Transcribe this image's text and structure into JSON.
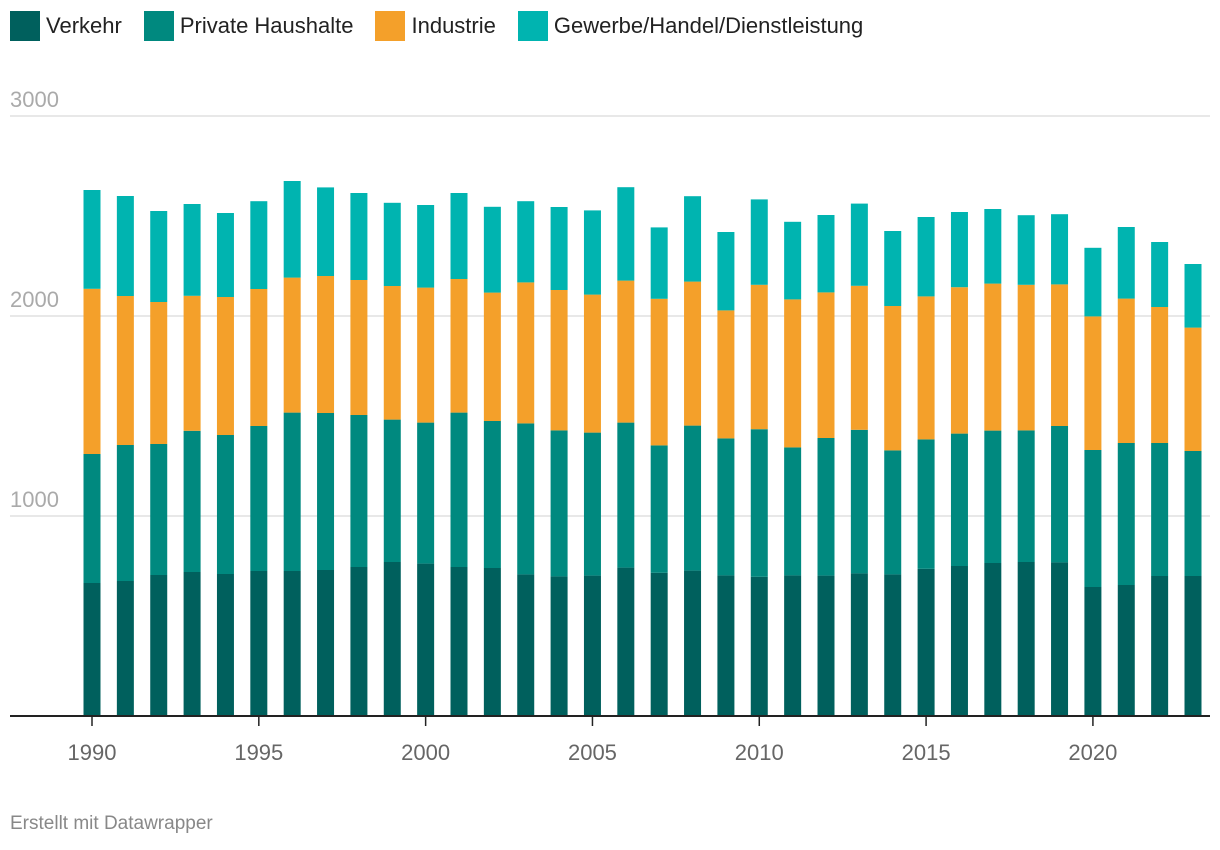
{
  "chart_data": {
    "type": "bar",
    "stacked": true,
    "years": [
      1990,
      1991,
      1992,
      1993,
      1994,
      1995,
      1996,
      1997,
      1998,
      1999,
      2000,
      2001,
      2002,
      2003,
      2004,
      2005,
      2006,
      2007,
      2008,
      2009,
      2010,
      2011,
      2012,
      2013,
      2014,
      2015,
      2016,
      2017,
      2018,
      2019,
      2020,
      2021,
      2022,
      2023
    ],
    "series": [
      {
        "name": "Verkehr",
        "color": "#00605d",
        "values": [
          665,
          675,
          705,
          720,
          710,
          725,
          725,
          730,
          745,
          770,
          762,
          745,
          740,
          708,
          698,
          702,
          742,
          716,
          727,
          703,
          696,
          703,
          702,
          713,
          708,
          736,
          750,
          765,
          770,
          768,
          645,
          655,
          700,
          700
        ]
      },
      {
        "name": "Private Haushalte",
        "color": "#00897f",
        "values": [
          645,
          680,
          655,
          706,
          695,
          725,
          792,
          785,
          760,
          712,
          705,
          772,
          735,
          755,
          730,
          715,
          725,
          637,
          725,
          685,
          738,
          640,
          688,
          718,
          620,
          647,
          662,
          662,
          658,
          682,
          685,
          710,
          665,
          625
        ]
      },
      {
        "name": "Industrie",
        "color": "#f4a02a",
        "values": [
          826,
          745,
          710,
          675,
          690,
          685,
          675,
          685,
          675,
          668,
          675,
          668,
          642,
          705,
          702,
          690,
          710,
          733,
          720,
          640,
          722,
          740,
          728,
          720,
          722,
          715,
          732,
          735,
          728,
          708,
          668,
          722,
          680,
          617
        ]
      },
      {
        "name": "Gewerbe/Handel/Dienstleistung",
        "color": "#00b4b0",
        "values": [
          494,
          500,
          455,
          459,
          420,
          439,
          483,
          443,
          435,
          416,
          413,
          430,
          429,
          406,
          415,
          421,
          467,
          357,
          427,
          392,
          427,
          388,
          387,
          411,
          375,
          397,
          376,
          373,
          348,
          351,
          343,
          358,
          325,
          318
        ]
      }
    ],
    "ylim": [
      0,
      3000
    ],
    "yticks": [
      1000,
      2000,
      3000
    ],
    "xticks": [
      1990,
      1995,
      2000,
      2005,
      2010,
      2015,
      2020
    ],
    "title": "",
    "xlabel": "",
    "ylabel": "",
    "grid": true,
    "legend_position": "top-left"
  },
  "credit": "Erstellt mit Datawrapper",
  "colors": {
    "grid": "#e0e0e0",
    "axis": "#222222",
    "tick_label": "#666666",
    "y_tick_label": "#aaaaaa"
  }
}
